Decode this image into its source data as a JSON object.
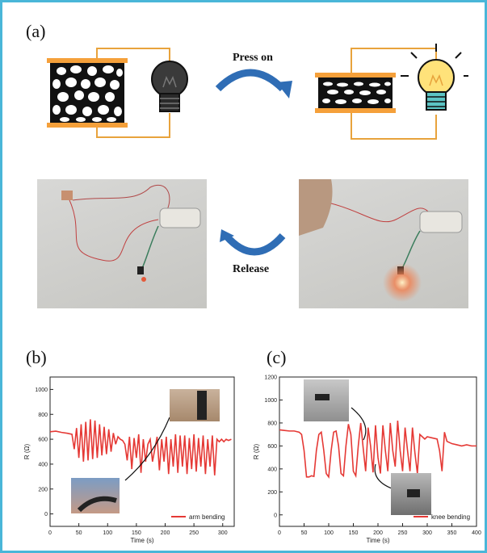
{
  "panel_labels": {
    "a": "(a)",
    "b": "(b)",
    "c": "(c)"
  },
  "diagram": {
    "press_label": "Press on",
    "release_label": "Release"
  },
  "colors": {
    "border": "#4ab6d8",
    "wire": "#e8a33c",
    "electrode": "#f5a03a",
    "arrow": "#2f6db5",
    "curve": "#e53935",
    "bulb_off": "#3a3a3a",
    "bulb_on": "#ffe27a",
    "bulb_base_on": "#5cc4c4"
  },
  "chart_data": [
    {
      "type": "line",
      "title": "",
      "xlabel": "Time (s)",
      "ylabel": "R (Ω)",
      "xlim": [
        0,
        320
      ],
      "ylim": [
        -100,
        1100
      ],
      "xticks": [
        "0",
        "50",
        "100",
        "150",
        "200",
        "250",
        "300"
      ],
      "yticks": [
        "0",
        "200",
        "400",
        "600",
        "800",
        "1000"
      ],
      "legend": "arm bending",
      "series": [
        {
          "name": "arm bending",
          "x": [
            0,
            10,
            20,
            30,
            38,
            42,
            46,
            50,
            54,
            58,
            62,
            66,
            70,
            74,
            78,
            82,
            86,
            90,
            94,
            98,
            102,
            106,
            110,
            114,
            118,
            122,
            126,
            130,
            134,
            138,
            142,
            146,
            150,
            154,
            158,
            162,
            166,
            170,
            174,
            178,
            182,
            186,
            190,
            194,
            198,
            202,
            206,
            210,
            214,
            218,
            222,
            226,
            230,
            234,
            238,
            242,
            246,
            250,
            254,
            258,
            262,
            266,
            270,
            274,
            278,
            282,
            286,
            290,
            294,
            298,
            302,
            306,
            310,
            315
          ],
          "y": [
            660,
            665,
            655,
            648,
            640,
            520,
            690,
            450,
            720,
            420,
            740,
            430,
            760,
            440,
            750,
            450,
            720,
            470,
            700,
            480,
            680,
            500,
            650,
            560,
            620,
            600,
            590,
            560,
            430,
            620,
            360,
            610,
            450,
            640,
            330,
            600,
            420,
            560,
            600,
            420,
            520,
            620,
            350,
            600,
            420,
            620,
            320,
            600,
            380,
            640,
            330,
            630,
            380,
            630,
            320,
            610,
            360,
            640,
            340,
            610,
            380,
            630,
            320,
            600,
            380,
            630,
            310,
            600,
            580,
            600,
            580,
            600,
            590,
            600
          ]
        }
      ],
      "annotation": "arm bending"
    },
    {
      "type": "line",
      "title": "",
      "xlabel": "Time (s)",
      "ylabel": "R (Ω)",
      "xlim": [
        0,
        400
      ],
      "ylim": [
        -100,
        1200
      ],
      "xticks": [
        "0",
        "50",
        "100",
        "150",
        "200",
        "250",
        "300",
        "350",
        "400"
      ],
      "yticks": [
        "0",
        "200",
        "400",
        "600",
        "800",
        "1000",
        "1200"
      ],
      "legend": "knee bending",
      "series": [
        {
          "name": "knee bending",
          "x": [
            0,
            10,
            20,
            30,
            40,
            45,
            50,
            55,
            60,
            65,
            70,
            75,
            80,
            85,
            90,
            95,
            100,
            105,
            110,
            115,
            120,
            125,
            130,
            135,
            140,
            145,
            150,
            155,
            160,
            165,
            170,
            175,
            180,
            185,
            190,
            195,
            200,
            205,
            210,
            215,
            220,
            225,
            230,
            235,
            240,
            245,
            250,
            255,
            260,
            265,
            270,
            275,
            280,
            285,
            290,
            295,
            300,
            310,
            320,
            325,
            330,
            335,
            340,
            350,
            360,
            370,
            380,
            390,
            400
          ],
          "y": [
            740,
            735,
            730,
            730,
            720,
            700,
            560,
            330,
            330,
            340,
            335,
            560,
            700,
            720,
            560,
            360,
            330,
            560,
            720,
            730,
            600,
            360,
            340,
            600,
            790,
            700,
            380,
            340,
            600,
            800,
            580,
            380,
            760,
            600,
            370,
            780,
            500,
            360,
            780,
            560,
            380,
            800,
            560,
            420,
            820,
            560,
            380,
            760,
            560,
            380,
            760,
            540,
            360,
            700,
            680,
            660,
            680,
            670,
            660,
            560,
            380,
            720,
            640,
            620,
            610,
            600,
            610,
            600,
            600
          ]
        }
      ],
      "annotation": "knee bending"
    }
  ]
}
